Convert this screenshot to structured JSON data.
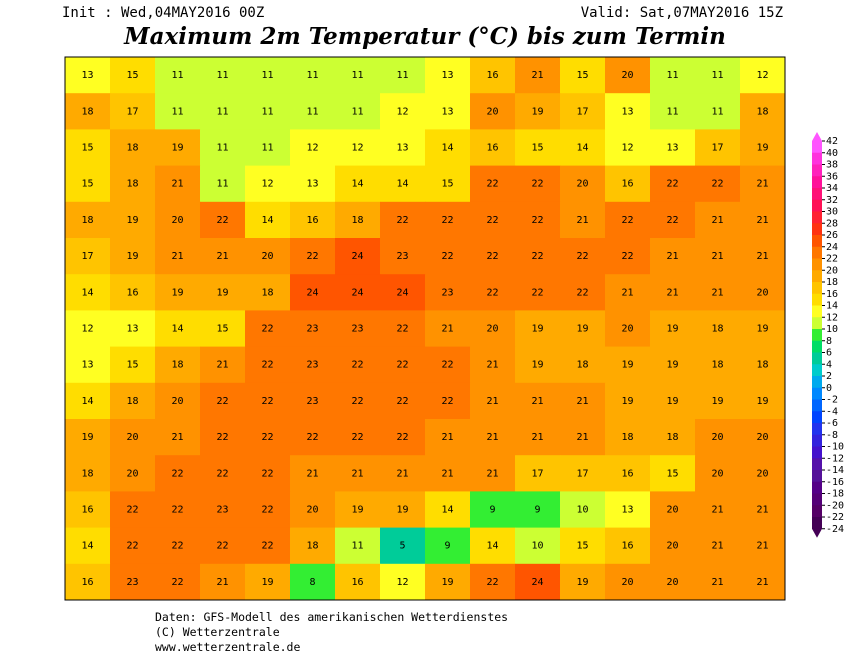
{
  "header": {
    "init": "Init : Wed,04MAY2016 00Z",
    "valid": "Valid: Sat,07MAY2016 15Z",
    "title": "Maximum 2m Temperatur (°C) bis zum Termin"
  },
  "map": {
    "values": [
      [
        13,
        15,
        11,
        11,
        11,
        11,
        11,
        11,
        13,
        16,
        21,
        15,
        20,
        11,
        11,
        12
      ],
      [
        18,
        17,
        11,
        11,
        11,
        11,
        11,
        12,
        13,
        20,
        19,
        17,
        13,
        11,
        11,
        18
      ],
      [
        15,
        18,
        19,
        11,
        11,
        12,
        12,
        13,
        14,
        16,
        15,
        14,
        12,
        13,
        17,
        19
      ],
      [
        15,
        18,
        21,
        11,
        12,
        13,
        14,
        14,
        15,
        22,
        22,
        20,
        16,
        22,
        22,
        21
      ],
      [
        18,
        19,
        20,
        22,
        14,
        16,
        18,
        22,
        22,
        22,
        22,
        21,
        22,
        22,
        21,
        21
      ],
      [
        17,
        19,
        21,
        21,
        20,
        22,
        24,
        23,
        22,
        22,
        22,
        22,
        22,
        21,
        21,
        21
      ],
      [
        14,
        16,
        19,
        19,
        18,
        24,
        24,
        24,
        23,
        22,
        22,
        22,
        21,
        21,
        21,
        20
      ],
      [
        12,
        13,
        14,
        15,
        22,
        23,
        23,
        22,
        21,
        20,
        19,
        19,
        20,
        19,
        18,
        19
      ],
      [
        13,
        15,
        18,
        21,
        22,
        23,
        22,
        22,
        22,
        21,
        19,
        18,
        19,
        19,
        18,
        18
      ],
      [
        14,
        18,
        20,
        22,
        22,
        23,
        22,
        22,
        22,
        21,
        21,
        21,
        19,
        19,
        19,
        19
      ],
      [
        19,
        20,
        21,
        22,
        22,
        22,
        22,
        22,
        21,
        21,
        21,
        21,
        18,
        18,
        20,
        20
      ],
      [
        18,
        20,
        22,
        22,
        22,
        21,
        21,
        21,
        21,
        21,
        17,
        17,
        16,
        15,
        20,
        20
      ],
      [
        16,
        22,
        22,
        23,
        22,
        20,
        19,
        19,
        14,
        9,
        9,
        10,
        13,
        20,
        21,
        21
      ],
      [
        14,
        22,
        22,
        22,
        22,
        18,
        11,
        5,
        9,
        14,
        10,
        15,
        16,
        20,
        21,
        21
      ],
      [
        16,
        23,
        22,
        21,
        19,
        8,
        16,
        12,
        19,
        22,
        24,
        19,
        20,
        20,
        21,
        21
      ]
    ]
  },
  "colorbar": {
    "levels": [
      42,
      40,
      38,
      36,
      34,
      32,
      30,
      28,
      26,
      24,
      22,
      20,
      18,
      16,
      14,
      12,
      10,
      8,
      6,
      4,
      2,
      0,
      -2,
      -4,
      -6,
      -8,
      -10,
      -12,
      -14,
      -16,
      -18,
      -20,
      -22,
      -24
    ],
    "colors": [
      "#ff55ff",
      "#ff33dd",
      "#ff22bb",
      "#ff1199",
      "#ff1177",
      "#ff1155",
      "#ff2233",
      "#ff3311",
      "#ff5500",
      "#ff7700",
      "#ff9200",
      "#ffaa00",
      "#ffc400",
      "#ffdd00",
      "#ffff22",
      "#ccff33",
      "#33ee33",
      "#00dd66",
      "#00cc99",
      "#00cccc",
      "#00aaee",
      "#0088ff",
      "#0066ff",
      "#0044ff",
      "#2233ee",
      "#3322dd",
      "#4411cc",
      "#5511aa",
      "#551199",
      "#550088",
      "#550077",
      "#550066",
      "#440055"
    ]
  },
  "footer": {
    "line1": "Daten: GFS-Modell des amerikanischen Wetterdienstes",
    "line2": "(C) Wetterzentrale",
    "line3": "www.wetterzentrale.de"
  }
}
